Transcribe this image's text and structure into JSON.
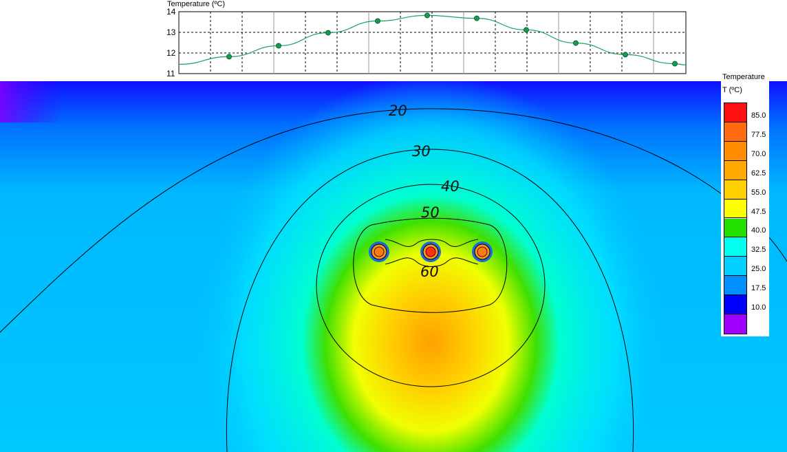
{
  "chart_data": [
    {
      "type": "line",
      "title": "Temperature (ºC)",
      "ylim": [
        11,
        14
      ],
      "yticks": [
        "14",
        "13",
        "12",
        "11"
      ],
      "grid": true,
      "marker_color": "#1a9a50",
      "line_color": "#1aa060",
      "x": [
        1,
        2,
        3,
        4,
        5,
        6,
        7,
        8,
        9,
        10
      ],
      "values": [
        11.82,
        12.35,
        12.98,
        13.55,
        13.82,
        13.68,
        13.12,
        12.48,
        11.92,
        11.48
      ]
    },
    {
      "type": "heatmap",
      "contour_labels": [
        "20",
        "30",
        "40",
        "50",
        "60"
      ],
      "legend": {
        "title": "Temperature",
        "unit": "T (ºC)",
        "ticks": [
          "85.0",
          "77.5",
          "70.0",
          "62.5",
          "55.0",
          "47.5",
          "40.0",
          "32.5",
          "25.0",
          "17.5",
          "10.0"
        ],
        "colors": [
          "#ff1010",
          "#ff6a10",
          "#ff8c00",
          "#ffa800",
          "#ffd000",
          "#ffff00",
          "#22e000",
          "#00ffee",
          "#00d0ff",
          "#0090ff",
          "#0000ff",
          "#a000ff"
        ]
      }
    }
  ]
}
